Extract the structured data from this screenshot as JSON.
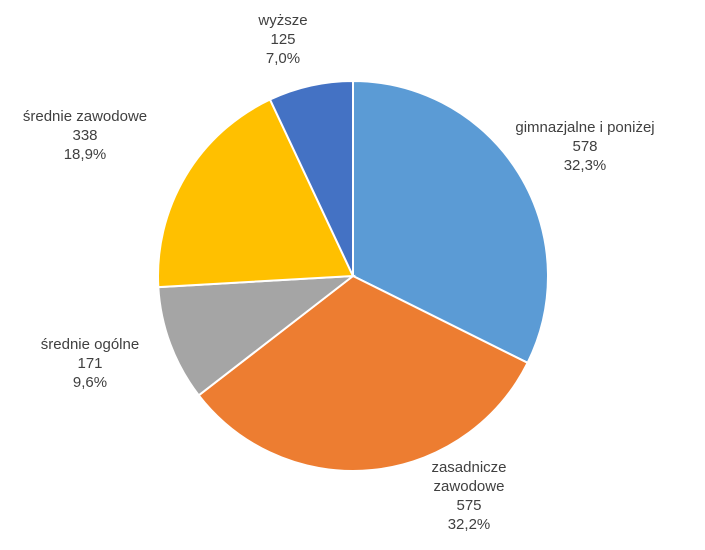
{
  "chart_data": {
    "type": "pie",
    "title": "",
    "legend": "none",
    "slices": [
      {
        "label": "gimnazjalne i poniżej",
        "value": 578,
        "percent_label": "32,3%",
        "color": "#5B9BD5"
      },
      {
        "label": "zasadnicze zawodowe",
        "value": 575,
        "percent_label": "32,2%",
        "color": "#ED7D31"
      },
      {
        "label": "średnie ogólne",
        "value": 171,
        "percent_label": "9,6%",
        "color": "#A5A5A5"
      },
      {
        "label": "średnie zawodowe",
        "value": 338,
        "percent_label": "18,9%",
        "color": "#FFC000"
      },
      {
        "label": "wyższe",
        "value": 125,
        "percent_label": "7,0%",
        "color": "#4472C4"
      }
    ]
  }
}
